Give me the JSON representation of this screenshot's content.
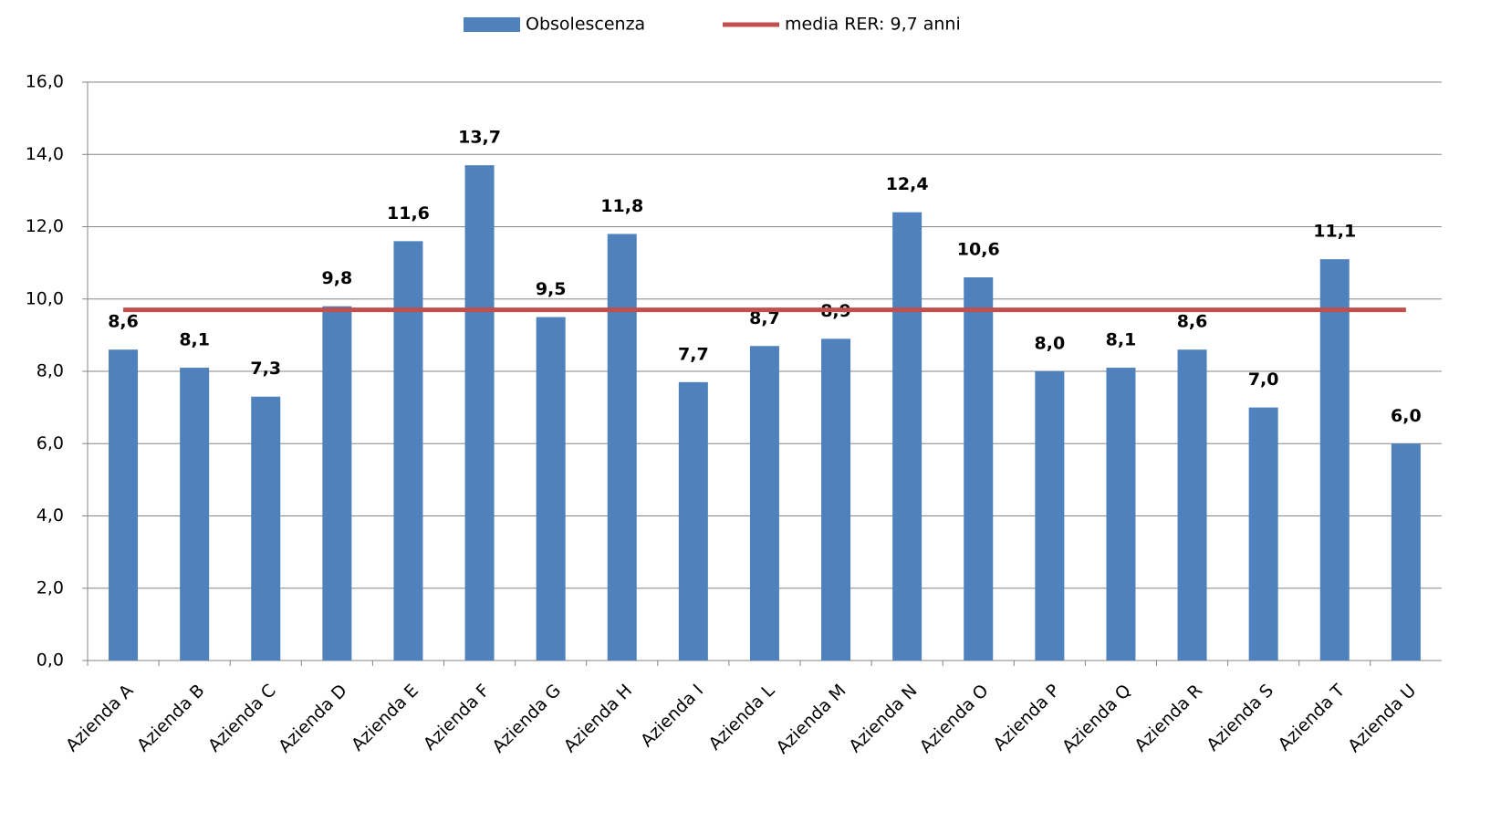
{
  "chart_data": {
    "type": "bar",
    "categories": [
      "Azienda A",
      "Azienda B",
      "Azienda C",
      "Azienda D",
      "Azienda E",
      "Azienda F",
      "Azienda G",
      "Azienda H",
      "Azienda I",
      "Azienda L",
      "Azienda M",
      "Azienda N",
      "Azienda O",
      "Azienda P",
      "Azienda Q",
      "Azienda R",
      "Azienda S",
      "Azienda T",
      "Azienda U"
    ],
    "series": [
      {
        "name": "Obsolescenza",
        "type": "bar",
        "color": "#4f81bd",
        "values": [
          8.6,
          8.1,
          7.3,
          9.8,
          11.6,
          13.7,
          9.5,
          11.8,
          7.7,
          8.7,
          8.9,
          12.4,
          10.6,
          8.0,
          8.1,
          8.6,
          7.0,
          11.1,
          6.0
        ],
        "value_labels": [
          "8,6",
          "8,1",
          "7,3",
          "9,8",
          "11,6",
          "13,7",
          "9,5",
          "11,8",
          "7,7",
          "8,7",
          "8,9",
          "12,4",
          "10,6",
          "8,0",
          "8,1",
          "8,6",
          "7,0",
          "11,1",
          "6,0"
        ]
      },
      {
        "name": "media RER: 9,7 anni",
        "type": "line",
        "color": "#c0504d",
        "values": [
          9.7,
          9.7,
          9.7,
          9.7,
          9.7,
          9.7,
          9.7,
          9.7,
          9.7,
          9.7,
          9.7,
          9.7,
          9.7,
          9.7,
          9.7,
          9.7,
          9.7,
          9.7,
          9.7
        ]
      }
    ],
    "ylim": [
      0,
      16
    ],
    "yticks": [
      {
        "value": 0,
        "label": "0,0"
      },
      {
        "value": 2,
        "label": "2,0"
      },
      {
        "value": 4,
        "label": "4,0"
      },
      {
        "value": 6,
        "label": "6,0"
      },
      {
        "value": 8,
        "label": "8,0"
      },
      {
        "value": 10,
        "label": "10,0"
      },
      {
        "value": 12,
        "label": "12,0"
      },
      {
        "value": 14,
        "label": "14,0"
      },
      {
        "value": 16,
        "label": "16,0"
      }
    ],
    "grid": true,
    "legend": "top"
  }
}
